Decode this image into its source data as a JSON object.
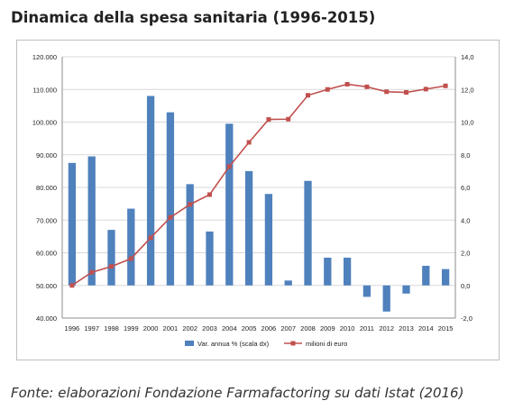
{
  "title": "Dinamica della spesa sanitaria (1996-2015)",
  "source": "Fonte: elaborazioni Fondazione Farmafactoring su dati Istat (2016)",
  "chart_data": {
    "type": "bar",
    "categories": [
      "1996",
      "1997",
      "1998",
      "1999",
      "2000",
      "2001",
      "2002",
      "2003",
      "2004",
      "2005",
      "2006",
      "2007",
      "2008",
      "2009",
      "2010",
      "2011",
      "2012",
      "2013",
      "2014",
      "2015"
    ],
    "series": [
      {
        "name": "Var. annua % (scala dx)",
        "type": "bar",
        "axis": "right",
        "color": "#4f81bd",
        "values": [
          7.5,
          7.9,
          3.4,
          4.7,
          11.6,
          10.6,
          6.2,
          3.3,
          9.9,
          7.0,
          5.6,
          0.3,
          6.4,
          1.7,
          1.7,
          -0.7,
          -1.6,
          -0.5,
          1.2,
          1.0
        ]
      },
      {
        "name": "milioni di euro",
        "type": "line",
        "axis": "left",
        "color": "#c0504d",
        "values": [
          50000,
          54000,
          55800,
          58200,
          64600,
          70800,
          74800,
          77800,
          86400,
          93800,
          100800,
          100900,
          108200,
          110000,
          111600,
          110800,
          109300,
          109100,
          110100,
          111100
        ]
      }
    ],
    "y_left": {
      "min": 40000,
      "max": 120000,
      "step": 10000,
      "tick_labels": [
        "40.000",
        "50.000",
        "60.000",
        "70.000",
        "80.000",
        "90.000",
        "100.000",
        "110.000",
        "120.000"
      ]
    },
    "y_right": {
      "min": -2,
      "max": 14,
      "step": 2,
      "tick_labels": [
        "-2,0",
        "0,0",
        "2,0",
        "4,0",
        "6,0",
        "8,0",
        "10,0",
        "12,0",
        "14,0"
      ]
    },
    "grid": true,
    "legend_position": "bottom"
  }
}
